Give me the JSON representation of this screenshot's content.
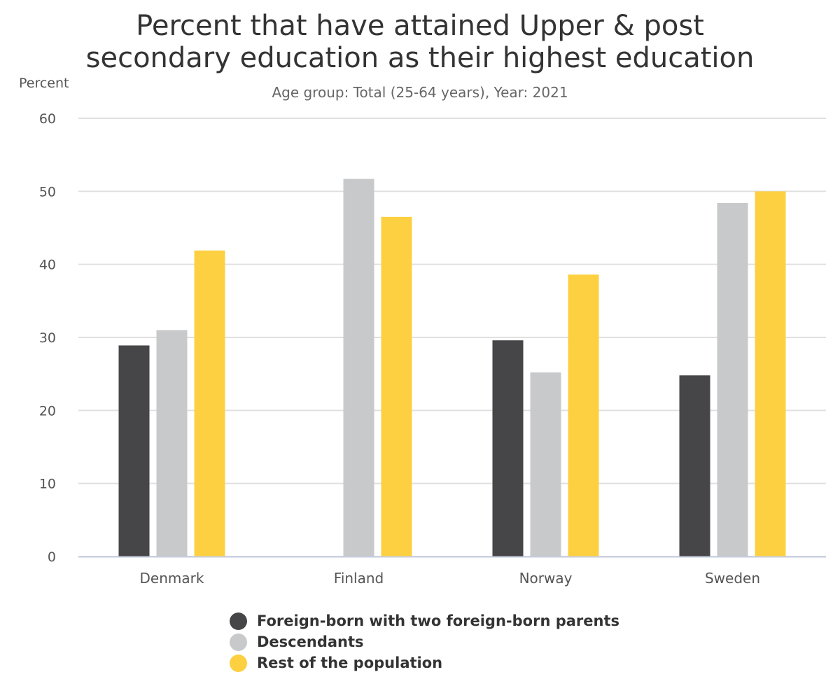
{
  "chart_data": {
    "type": "bar",
    "title": "Percent that have attained Upper & post secondary education as their highest education",
    "title_lines": [
      "Percent that have attained Upper & post",
      "secondary education as their highest education"
    ],
    "subtitle": "Age group: Total (25-64 years), Year: 2021",
    "ylabel": "Percent",
    "xlabel": "",
    "ylim": [
      0,
      60
    ],
    "yticks": [
      "0",
      "10",
      "20",
      "30",
      "40",
      "50",
      "60"
    ],
    "grid": true,
    "legend_position": "bottom",
    "categories": [
      "Denmark",
      "Finland",
      "Norway",
      "Sweden"
    ],
    "series": [
      {
        "name": "Foreign-born with two foreign-born parents",
        "color": "#464648",
        "values": [
          28.9,
          null,
          29.6,
          24.8
        ]
      },
      {
        "name": "Descendants",
        "color": "#c8c9cb",
        "values": [
          31.0,
          51.7,
          25.2,
          48.4
        ]
      },
      {
        "name": "Rest of the population",
        "color": "#fdd042",
        "values": [
          41.9,
          46.5,
          38.6,
          50.0
        ]
      }
    ]
  }
}
